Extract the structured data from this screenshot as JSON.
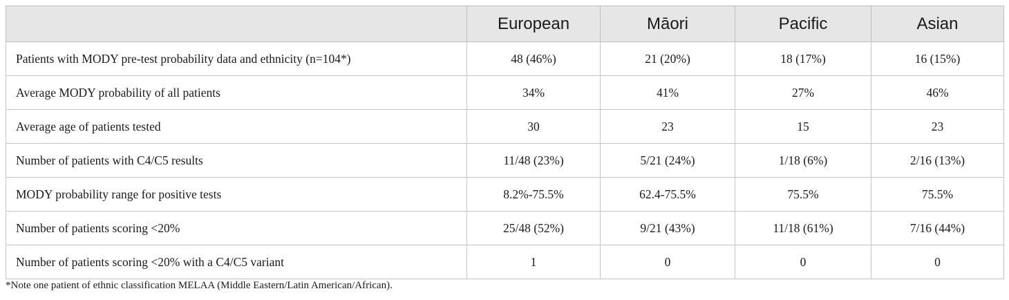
{
  "table": {
    "columns": [
      "",
      "European",
      "Māori",
      "Pacific",
      "Asian"
    ],
    "rows": [
      {
        "label": "Patients with MODY pre-test probability data and ethnicity (n=104*)",
        "values": [
          "48 (46%)",
          "21 (20%)",
          "18 (17%)",
          "16 (15%)"
        ]
      },
      {
        "label": "Average MODY probability of all patients",
        "values": [
          "34%",
          "41%",
          "27%",
          "46%"
        ]
      },
      {
        "label": "Average age of patients tested",
        "values": [
          "30",
          "23",
          "15",
          "23"
        ]
      },
      {
        "label": "Number of patients with C4/C5 results",
        "values": [
          "11/48 (23%)",
          "5/21 (24%)",
          "1/18 (6%)",
          "2/16 (13%)"
        ]
      },
      {
        "label": "MODY probability range for positive tests",
        "values": [
          "8.2%-75.5%",
          "62.4-75.5%",
          "75.5%",
          "75.5%"
        ]
      },
      {
        "label": "Number of patients scoring <20%",
        "values": [
          "25/48 (52%)",
          "9/21 (43%)",
          "11/18 (61%)",
          "7/16 (44%)"
        ]
      },
      {
        "label": "Number of patients scoring <20% with a C4/C5 variant",
        "values": [
          "1",
          "0",
          "0",
          "0"
        ]
      }
    ]
  },
  "footnote": "*Note one patient of ethnic classification MELAA (Middle Eastern/Latin American/African).",
  "colors": {
    "header_bg": "#e7e6e6",
    "border": "#c4c4c4",
    "text": "#1a1a1a"
  }
}
